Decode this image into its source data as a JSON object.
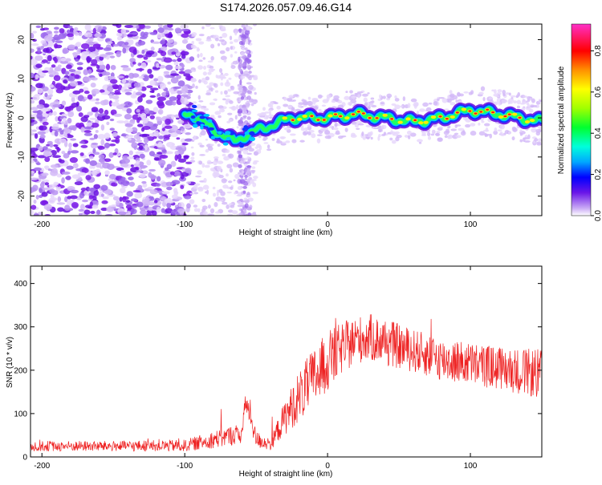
{
  "figure_title": "S174.2026.057.09.46.G14",
  "colors": {
    "snr_line": "#ee2222",
    "spec_low": "#7a1ae8",
    "spec_mid": "#00e0ff",
    "spec_high": "#ff2020"
  },
  "chart_data": [
    {
      "type": "heatmap",
      "xlabel": "Height of straight line (km)",
      "ylabel": "Frequency (Hz)",
      "xlim": [
        -208,
        150
      ],
      "ylim": [
        -25,
        24
      ],
      "x_ticks": [
        -200,
        -100,
        0,
        100
      ],
      "y_ticks": [
        -20,
        -10,
        0,
        10,
        20
      ],
      "ridge_frequency_hz": {
        "x": [
          -95,
          -80,
          -65,
          -55,
          -40,
          -25,
          -10,
          0,
          20,
          40,
          60,
          80,
          100,
          120,
          150
        ],
        "y": [
          1,
          -3,
          -6,
          -4,
          -2,
          0,
          0,
          0,
          1,
          0,
          -1,
          0,
          2,
          1,
          -1
        ]
      },
      "colorbar": {
        "label": "Normalized spectral amplitude",
        "range": [
          0,
          0.93
        ],
        "ticks": [
          0.0,
          0.2,
          0.4,
          0.6,
          0.8
        ],
        "tick_labels": [
          "0.0",
          "0.2",
          "0.4",
          "0.6",
          "0.8"
        ]
      }
    },
    {
      "type": "line",
      "xlabel": "Height of straight line (km)",
      "ylabel": "SNR (10 * v/v)",
      "xlim": [
        -208,
        150
      ],
      "ylim": [
        0,
        440
      ],
      "x_ticks": [
        -200,
        -100,
        0,
        100
      ],
      "y_ticks": [
        0,
        100,
        200,
        300,
        400
      ],
      "series": [
        {
          "name": "SNR",
          "envelope_x": [
            -208,
            -150,
            -100,
            -80,
            -60,
            -57,
            -50,
            -40,
            -30,
            -20,
            -10,
            0,
            10,
            20,
            30,
            40,
            60,
            80,
            100,
            120,
            140,
            150
          ],
          "envelope_mean": [
            25,
            25,
            26,
            40,
            55,
            130,
            40,
            30,
            90,
            140,
            180,
            220,
            250,
            270,
            275,
            265,
            245,
            225,
            215,
            205,
            195,
            190
          ],
          "envelope_spread": [
            12,
            12,
            14,
            20,
            25,
            30,
            20,
            15,
            40,
            60,
            70,
            70,
            60,
            55,
            55,
            55,
            50,
            50,
            50,
            50,
            55,
            60
          ]
        }
      ]
    }
  ]
}
